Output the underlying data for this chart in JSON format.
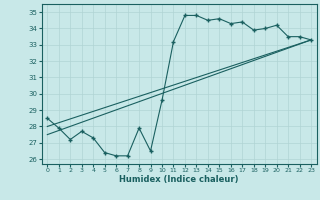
{
  "xlabel": "Humidex (Indice chaleur)",
  "background_color": "#c8e8e8",
  "grid_color": "#b0d4d4",
  "line_color": "#1a6060",
  "xlim": [
    -0.5,
    23.5
  ],
  "ylim": [
    25.7,
    35.5
  ],
  "yticks": [
    26,
    27,
    28,
    29,
    30,
    31,
    32,
    33,
    34,
    35
  ],
  "xticks": [
    0,
    1,
    2,
    3,
    4,
    5,
    6,
    7,
    8,
    9,
    10,
    11,
    12,
    13,
    14,
    15,
    16,
    17,
    18,
    19,
    20,
    21,
    22,
    23
  ],
  "line1_x": [
    0,
    1,
    2,
    3,
    4,
    5,
    6,
    7,
    8,
    9,
    10,
    11,
    12,
    13,
    14,
    15,
    16,
    17,
    18,
    19,
    20,
    21,
    22,
    23
  ],
  "line1_y": [
    28.5,
    27.9,
    27.2,
    27.7,
    27.3,
    26.4,
    26.2,
    26.2,
    27.9,
    26.5,
    29.6,
    33.2,
    34.8,
    34.8,
    34.5,
    34.6,
    34.3,
    34.4,
    33.9,
    34.0,
    34.2,
    33.5,
    33.5,
    33.3
  ],
  "trend1_x": [
    0,
    23
  ],
  "trend1_y": [
    28.0,
    33.3
  ],
  "trend2_x": [
    0,
    23
  ],
  "trend2_y": [
    27.5,
    33.3
  ]
}
